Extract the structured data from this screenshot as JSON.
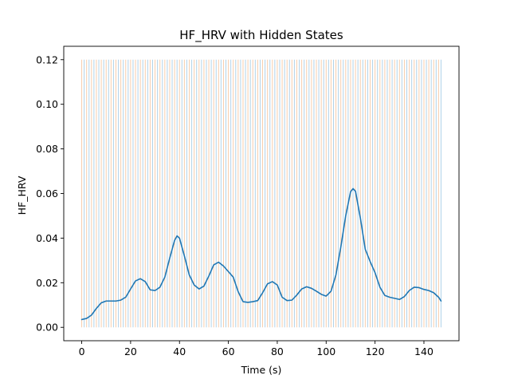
{
  "chart_data": {
    "type": "line",
    "title": "HF_HRV with Hidden States",
    "xlabel": "Time (s)",
    "ylabel": "HF_HRV",
    "xlim": [
      -7.35,
      154.35
    ],
    "ylim": [
      -0.006,
      0.126
    ],
    "xticks": [
      0,
      20,
      40,
      60,
      80,
      100,
      120,
      140
    ],
    "xtick_labels": [
      "0",
      "20",
      "40",
      "60",
      "80",
      "100",
      "120",
      "140"
    ],
    "yticks": [
      0.0,
      0.02,
      0.04,
      0.06,
      0.08,
      0.1,
      0.12
    ],
    "ytick_labels": [
      "0.00",
      "0.02",
      "0.04",
      "0.06",
      "0.08",
      "0.10",
      "0.12"
    ],
    "grid": false,
    "legend": "none",
    "hidden_states": {
      "style": "vertical lines",
      "y_range": [
        0.0,
        0.12
      ],
      "start": 0,
      "end": 147,
      "step": 1,
      "alternating_colors": [
        "#f6c8a3",
        "#a9cde6"
      ]
    },
    "series": [
      {
        "color": "#1f77b4",
        "x": [
          0,
          2,
          4,
          6,
          8,
          10,
          12,
          14,
          16,
          18,
          20,
          22,
          24,
          26,
          28,
          30,
          32,
          34,
          36,
          38,
          39,
          40,
          42,
          44,
          46,
          48,
          50,
          52,
          54,
          56,
          58,
          60,
          62,
          64,
          66,
          68,
          70,
          72,
          74,
          76,
          78,
          80,
          82,
          84,
          86,
          88,
          90,
          92,
          94,
          96,
          98,
          100,
          102,
          104,
          106,
          108,
          110,
          111,
          112,
          114,
          116,
          118,
          120,
          122,
          124,
          126,
          128,
          130,
          132,
          134,
          136,
          138,
          140,
          142,
          144,
          146,
          147
        ],
        "y": [
          0.0035,
          0.004,
          0.0055,
          0.0085,
          0.011,
          0.0118,
          0.0118,
          0.0118,
          0.0122,
          0.0135,
          0.0172,
          0.0208,
          0.0218,
          0.0205,
          0.0168,
          0.0165,
          0.018,
          0.0225,
          0.031,
          0.039,
          0.041,
          0.04,
          0.032,
          0.0235,
          0.019,
          0.0172,
          0.0185,
          0.023,
          0.028,
          0.0292,
          0.0275,
          0.025,
          0.0225,
          0.016,
          0.0115,
          0.0112,
          0.0115,
          0.012,
          0.0155,
          0.0195,
          0.0205,
          0.019,
          0.0135,
          0.012,
          0.0122,
          0.0145,
          0.0172,
          0.0182,
          0.0175,
          0.0162,
          0.0148,
          0.014,
          0.0162,
          0.0235,
          0.036,
          0.05,
          0.0608,
          0.0622,
          0.061,
          0.049,
          0.035,
          0.0295,
          0.0245,
          0.018,
          0.0143,
          0.0135,
          0.013,
          0.0125,
          0.0138,
          0.0165,
          0.018,
          0.0178,
          0.017,
          0.0165,
          0.0155,
          0.0135,
          0.0118
        ]
      }
    ]
  }
}
